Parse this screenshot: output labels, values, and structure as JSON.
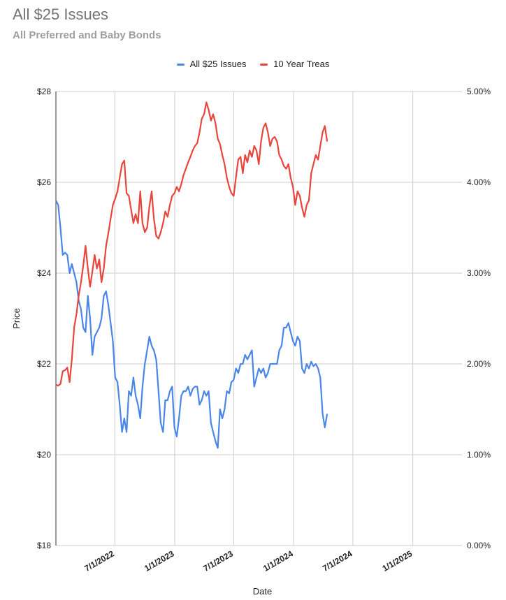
{
  "chart_data": {
    "type": "line",
    "title": "All $25 Issues",
    "subtitle": "All Preferred and Baby Bonds",
    "xlabel": "Date",
    "ylabel": "Price",
    "x_range": [
      "2022-01-01",
      "2025-06-01"
    ],
    "x_ticks": [
      "7/1/2022",
      "1/1/2023",
      "7/1/2023",
      "1/1/2024",
      "7/1/2024",
      "1/1/2025"
    ],
    "y_left": {
      "ticks": [
        "$18",
        "$20",
        "$22",
        "$24",
        "$26",
        "$28"
      ],
      "ylim": [
        18,
        28
      ]
    },
    "y_right": {
      "ticks": [
        "0.00%",
        "1.00%",
        "2.00%",
        "3.00%",
        "4.00%",
        "5.00%"
      ],
      "ylim": [
        0,
        5
      ]
    },
    "grid": true,
    "legend_position": "top",
    "series": [
      {
        "name": "All $25 Issues",
        "axis": "left",
        "color": "#4a86e8",
        "points": [
          [
            "2022-01-01",
            25.6
          ],
          [
            "2022-01-08",
            25.5
          ],
          [
            "2022-01-15",
            25.0
          ],
          [
            "2022-01-22",
            24.4
          ],
          [
            "2022-01-29",
            24.45
          ],
          [
            "2022-02-05",
            24.4
          ],
          [
            "2022-02-12",
            24.0
          ],
          [
            "2022-02-19",
            24.2
          ],
          [
            "2022-02-26",
            24.0
          ],
          [
            "2022-03-05",
            23.8
          ],
          [
            "2022-03-12",
            23.4
          ],
          [
            "2022-03-19",
            23.2
          ],
          [
            "2022-03-26",
            22.8
          ],
          [
            "2022-04-02",
            22.7
          ],
          [
            "2022-04-09",
            23.5
          ],
          [
            "2022-04-16",
            23.0
          ],
          [
            "2022-04-23",
            22.2
          ],
          [
            "2022-04-30",
            22.6
          ],
          [
            "2022-05-07",
            22.7
          ],
          [
            "2022-05-14",
            22.8
          ],
          [
            "2022-05-21",
            23.0
          ],
          [
            "2022-05-28",
            23.5
          ],
          [
            "2022-06-04",
            23.6
          ],
          [
            "2022-06-11",
            23.3
          ],
          [
            "2022-06-18",
            22.9
          ],
          [
            "2022-06-25",
            22.5
          ],
          [
            "2022-07-02",
            21.7
          ],
          [
            "2022-07-09",
            21.6
          ],
          [
            "2022-07-16",
            21.1
          ],
          [
            "2022-07-23",
            20.5
          ],
          [
            "2022-07-30",
            20.8
          ],
          [
            "2022-08-06",
            20.5
          ],
          [
            "2022-08-13",
            21.4
          ],
          [
            "2022-08-20",
            21.3
          ],
          [
            "2022-08-27",
            21.7
          ],
          [
            "2022-09-03",
            21.3
          ],
          [
            "2022-09-10",
            21.1
          ],
          [
            "2022-09-17",
            20.8
          ],
          [
            "2022-09-24",
            21.5
          ],
          [
            "2022-10-01",
            22.0
          ],
          [
            "2022-10-08",
            22.3
          ],
          [
            "2022-10-15",
            22.6
          ],
          [
            "2022-10-22",
            22.4
          ],
          [
            "2022-10-29",
            22.3
          ],
          [
            "2022-11-05",
            22.1
          ],
          [
            "2022-11-12",
            21.4
          ],
          [
            "2022-11-19",
            20.7
          ],
          [
            "2022-11-26",
            20.5
          ],
          [
            "2022-12-03",
            21.2
          ],
          [
            "2022-12-10",
            21.2
          ],
          [
            "2022-12-17",
            21.4
          ],
          [
            "2022-12-24",
            21.5
          ],
          [
            "2022-12-31",
            20.6
          ],
          [
            "2023-01-07",
            20.4
          ],
          [
            "2023-01-14",
            20.8
          ],
          [
            "2023-01-21",
            21.3
          ],
          [
            "2023-01-28",
            21.4
          ],
          [
            "2023-02-04",
            21.4
          ],
          [
            "2023-02-11",
            21.5
          ],
          [
            "2023-02-18",
            21.3
          ],
          [
            "2023-02-25",
            21.45
          ],
          [
            "2023-03-04",
            21.5
          ],
          [
            "2023-03-11",
            21.5
          ],
          [
            "2023-03-18",
            21.1
          ],
          [
            "2023-03-25",
            21.2
          ],
          [
            "2023-04-01",
            21.4
          ],
          [
            "2023-04-08",
            21.3
          ],
          [
            "2023-04-15",
            21.4
          ],
          [
            "2023-04-22",
            20.7
          ],
          [
            "2023-04-29",
            20.5
          ],
          [
            "2023-05-06",
            20.3
          ],
          [
            "2023-05-13",
            20.15
          ],
          [
            "2023-05-20",
            21.0
          ],
          [
            "2023-05-27",
            20.8
          ],
          [
            "2023-06-03",
            21.0
          ],
          [
            "2023-06-10",
            21.4
          ],
          [
            "2023-06-17",
            21.35
          ],
          [
            "2023-06-24",
            21.6
          ],
          [
            "2023-07-01",
            21.65
          ],
          [
            "2023-07-08",
            21.9
          ],
          [
            "2023-07-15",
            21.8
          ],
          [
            "2023-07-22",
            22.0
          ],
          [
            "2023-07-29",
            22.0
          ],
          [
            "2023-08-05",
            22.2
          ],
          [
            "2023-08-12",
            22.1
          ],
          [
            "2023-08-19",
            22.2
          ],
          [
            "2023-08-26",
            22.3
          ],
          [
            "2023-09-02",
            21.5
          ],
          [
            "2023-09-09",
            21.7
          ],
          [
            "2023-09-16",
            21.9
          ],
          [
            "2023-09-23",
            21.8
          ],
          [
            "2023-09-30",
            21.9
          ],
          [
            "2023-10-07",
            21.7
          ],
          [
            "2023-10-14",
            21.8
          ],
          [
            "2023-10-21",
            22.0
          ],
          [
            "2023-10-28",
            22.0
          ],
          [
            "2023-11-04",
            22.0
          ],
          [
            "2023-11-11",
            22.0
          ],
          [
            "2023-11-18",
            22.3
          ],
          [
            "2023-11-25",
            22.4
          ],
          [
            "2023-12-02",
            22.8
          ],
          [
            "2023-12-09",
            22.8
          ],
          [
            "2023-12-16",
            22.9
          ],
          [
            "2023-12-23",
            22.7
          ],
          [
            "2023-12-30",
            22.5
          ],
          [
            "2024-01-06",
            22.4
          ],
          [
            "2024-01-13",
            22.6
          ],
          [
            "2024-01-20",
            22.5
          ],
          [
            "2024-01-27",
            21.9
          ],
          [
            "2024-02-03",
            21.8
          ],
          [
            "2024-02-10",
            22.0
          ],
          [
            "2024-02-17",
            21.9
          ],
          [
            "2024-02-24",
            22.05
          ],
          [
            "2024-03-02",
            21.95
          ],
          [
            "2024-03-09",
            22.0
          ],
          [
            "2024-03-16",
            21.9
          ],
          [
            "2024-03-23",
            21.7
          ],
          [
            "2024-03-30",
            20.9
          ],
          [
            "2024-04-06",
            20.6
          ],
          [
            "2024-04-13",
            20.9
          ]
        ]
      },
      {
        "name": "10 Year Treas",
        "axis": "right",
        "color": "#e8453c",
        "points": [
          [
            "2022-01-01",
            1.77
          ],
          [
            "2022-01-08",
            1.76
          ],
          [
            "2022-01-15",
            1.78
          ],
          [
            "2022-01-22",
            1.92
          ],
          [
            "2022-01-29",
            1.93
          ],
          [
            "2022-02-05",
            1.96
          ],
          [
            "2022-02-12",
            1.8
          ],
          [
            "2022-02-19",
            2.05
          ],
          [
            "2022-02-26",
            2.4
          ],
          [
            "2022-03-05",
            2.55
          ],
          [
            "2022-03-12",
            2.75
          ],
          [
            "2022-03-19",
            2.9
          ],
          [
            "2022-03-26",
            3.08
          ],
          [
            "2022-04-02",
            3.3
          ],
          [
            "2022-04-09",
            3.05
          ],
          [
            "2022-04-16",
            2.85
          ],
          [
            "2022-04-23",
            3.02
          ],
          [
            "2022-04-30",
            3.2
          ],
          [
            "2022-05-07",
            3.05
          ],
          [
            "2022-05-14",
            3.15
          ],
          [
            "2022-05-21",
            2.9
          ],
          [
            "2022-05-28",
            3.05
          ],
          [
            "2022-06-04",
            3.3
          ],
          [
            "2022-06-11",
            3.44
          ],
          [
            "2022-06-18",
            3.6
          ],
          [
            "2022-06-25",
            3.75
          ],
          [
            "2022-07-02",
            3.82
          ],
          [
            "2022-07-09",
            3.9
          ],
          [
            "2022-07-16",
            4.05
          ],
          [
            "2022-07-23",
            4.2
          ],
          [
            "2022-07-30",
            4.24
          ],
          [
            "2022-08-06",
            3.88
          ],
          [
            "2022-08-13",
            3.85
          ],
          [
            "2022-08-20",
            3.7
          ],
          [
            "2022-08-27",
            3.55
          ],
          [
            "2022-09-03",
            3.65
          ],
          [
            "2022-09-10",
            3.55
          ],
          [
            "2022-09-17",
            3.9
          ],
          [
            "2022-09-24",
            3.55
          ],
          [
            "2022-10-01",
            3.45
          ],
          [
            "2022-10-08",
            3.5
          ],
          [
            "2022-10-15",
            3.73
          ],
          [
            "2022-10-22",
            3.9
          ],
          [
            "2022-10-29",
            3.6
          ],
          [
            "2022-11-05",
            3.41
          ],
          [
            "2022-11-12",
            3.38
          ],
          [
            "2022-11-19",
            3.45
          ],
          [
            "2022-11-26",
            3.55
          ],
          [
            "2022-12-03",
            3.68
          ],
          [
            "2022-12-10",
            3.62
          ],
          [
            "2022-12-17",
            3.75
          ],
          [
            "2022-12-24",
            3.85
          ],
          [
            "2022-12-31",
            3.88
          ],
          [
            "2023-01-07",
            3.95
          ],
          [
            "2023-01-14",
            3.9
          ],
          [
            "2023-01-21",
            3.98
          ],
          [
            "2023-01-28",
            4.08
          ],
          [
            "2023-02-04",
            4.15
          ],
          [
            "2023-02-11",
            4.22
          ],
          [
            "2023-02-18",
            4.28
          ],
          [
            "2023-02-25",
            4.35
          ],
          [
            "2023-03-04",
            4.4
          ],
          [
            "2023-03-11",
            4.43
          ],
          [
            "2023-03-18",
            4.55
          ],
          [
            "2023-03-25",
            4.7
          ],
          [
            "2023-04-01",
            4.75
          ],
          [
            "2023-04-08",
            4.88
          ],
          [
            "2023-04-15",
            4.8
          ],
          [
            "2023-04-22",
            4.68
          ],
          [
            "2023-04-29",
            4.75
          ],
          [
            "2023-05-06",
            4.65
          ],
          [
            "2023-05-13",
            4.48
          ],
          [
            "2023-05-20",
            4.42
          ],
          [
            "2023-05-27",
            4.3
          ],
          [
            "2023-06-03",
            4.2
          ],
          [
            "2023-06-10",
            4.05
          ],
          [
            "2023-06-17",
            3.95
          ],
          [
            "2023-06-24",
            3.88
          ],
          [
            "2023-07-01",
            3.85
          ],
          [
            "2023-07-08",
            4.06
          ],
          [
            "2023-07-15",
            4.25
          ],
          [
            "2023-07-22",
            4.28
          ],
          [
            "2023-07-29",
            4.1
          ],
          [
            "2023-08-05",
            4.3
          ],
          [
            "2023-08-12",
            4.22
          ],
          [
            "2023-08-19",
            4.35
          ],
          [
            "2023-08-26",
            4.28
          ],
          [
            "2023-09-02",
            4.4
          ],
          [
            "2023-09-09",
            4.35
          ],
          [
            "2023-09-16",
            4.2
          ],
          [
            "2023-09-23",
            4.45
          ],
          [
            "2023-09-30",
            4.6
          ],
          [
            "2023-10-07",
            4.65
          ],
          [
            "2023-10-14",
            4.55
          ],
          [
            "2023-10-21",
            4.4
          ],
          [
            "2023-10-28",
            4.48
          ],
          [
            "2023-11-04",
            4.5
          ],
          [
            "2023-11-11",
            4.45
          ],
          [
            "2023-11-18",
            4.3
          ],
          [
            "2023-11-25",
            4.25
          ],
          [
            "2023-12-02",
            4.18
          ],
          [
            "2023-12-09",
            4.15
          ],
          [
            "2023-12-16",
            4.2
          ],
          [
            "2023-12-23",
            4.05
          ],
          [
            "2023-12-30",
            3.95
          ],
          [
            "2024-01-06",
            3.75
          ],
          [
            "2024-01-13",
            3.9
          ],
          [
            "2024-01-20",
            3.85
          ],
          [
            "2024-01-27",
            3.72
          ],
          [
            "2024-02-03",
            3.62
          ],
          [
            "2024-02-10",
            3.75
          ],
          [
            "2024-02-17",
            3.8
          ],
          [
            "2024-02-24",
            4.1
          ],
          [
            "2024-03-02",
            4.2
          ],
          [
            "2024-03-09",
            4.3
          ],
          [
            "2024-03-16",
            4.25
          ],
          [
            "2024-03-23",
            4.4
          ],
          [
            "2024-03-30",
            4.55
          ],
          [
            "2024-04-06",
            4.62
          ],
          [
            "2024-04-13",
            4.45
          ]
        ]
      }
    ]
  }
}
